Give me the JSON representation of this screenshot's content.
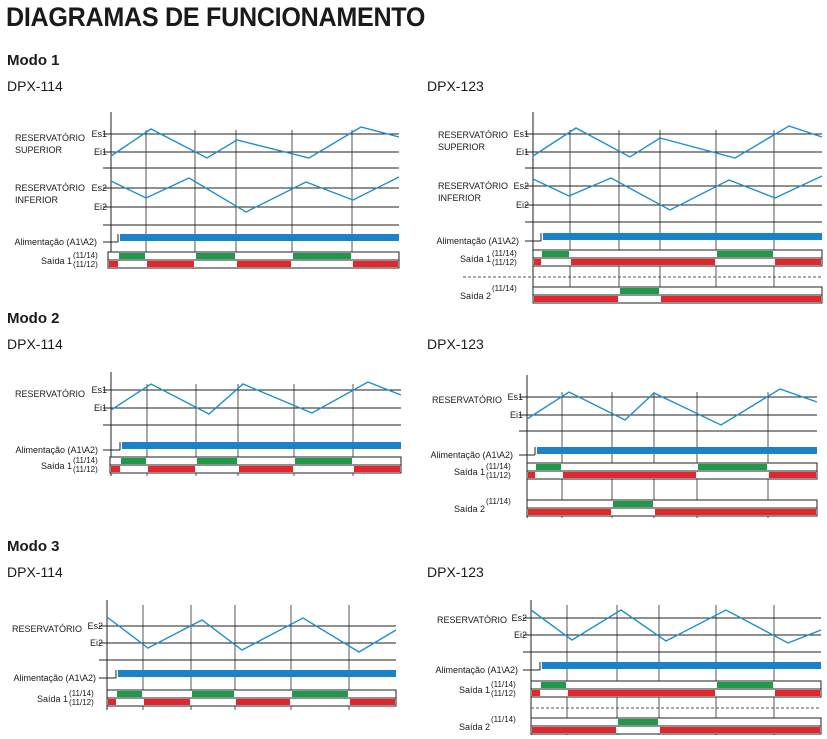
{
  "title": "DIAGRAMAS DE FUNCIONAMENTO",
  "colors": {
    "level": "#1f8fd0",
    "power": "#1a82c8",
    "on": "#1e9a4a",
    "off": "#e3262b",
    "line": "#222222",
    "grid": "#555555"
  },
  "labels": {
    "reservatorio": "RESERVATÓRIO",
    "superior": "SUPERIOR",
    "inferior": "INFERIOR",
    "es1": "Es1",
    "ei1": "Ei1",
    "es2": "Es2",
    "ei2": "Ei2",
    "alimentacao": "Alimentação (A1\\A2)",
    "saida1": "Saída 1",
    "saida2": "Saída 2",
    "no": "(11/14)",
    "nc": "(11/12)"
  },
  "modes": [
    {
      "name": "Modo 1",
      "left_model": "DPX-114",
      "right_model": "DPX-123"
    },
    {
      "name": "Modo 2",
      "left_model": "DPX-114",
      "right_model": "DPX-123"
    },
    {
      "name": "Modo 3",
      "left_model": "DPX-114",
      "right_model": "DPX-123"
    }
  ]
}
